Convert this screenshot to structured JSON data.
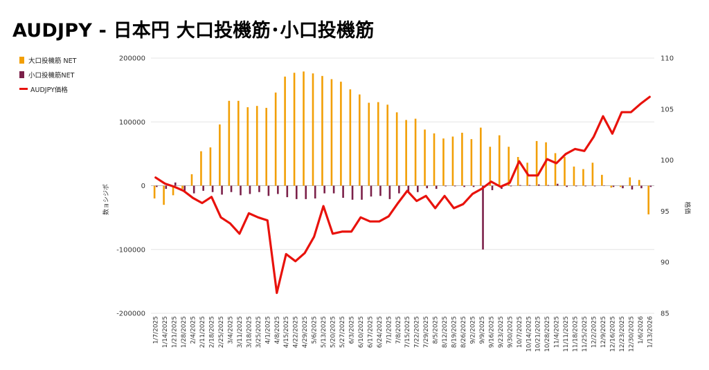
{
  "title": "AUDJPY - 日本円 大口投機筋･小口投機筋",
  "legend": [
    {
      "label": "大口投機筋 NET",
      "color": "#F29F05",
      "kind": "bar"
    },
    {
      "label": "小口投機筋NET",
      "color": "#7B2049",
      "kind": "bar"
    },
    {
      "label": "AUDJPY価格",
      "color": "#E8120C",
      "kind": "line"
    }
  ],
  "chart_data": {
    "type": "bar+line",
    "ylabel_left": "数ョシジポ",
    "ylabel_right": "格価",
    "ylim_left": [
      -200000,
      200000
    ],
    "ylim_right": [
      85,
      110
    ],
    "yticks_left": [
      "200000",
      "100000",
      "0",
      "-100000",
      "-200000"
    ],
    "yticks_right": [
      "110",
      "105",
      "100",
      "95",
      "90",
      "85"
    ],
    "categories": [
      "1/7/2025",
      "1/14/2025",
      "1/21/2025",
      "1/28/2025",
      "2/4/2025",
      "2/11/2025",
      "2/18/2025",
      "2/25/2025",
      "3/4/2025",
      "3/11/2025",
      "3/18/2025",
      "3/25/2025",
      "4/1/2025",
      "4/8/2025",
      "4/15/2025",
      "4/22/2025",
      "4/29/2025",
      "5/6/2025",
      "5/13/2025",
      "5/20/2025",
      "5/27/2025",
      "6/3/2025",
      "6/10/2025",
      "6/17/2025",
      "6/24/2025",
      "7/1/2025",
      "7/8/2025",
      "7/15/2025",
      "7/22/2025",
      "7/29/2025",
      "8/5/2025",
      "8/12/2025",
      "8/19/2025",
      "8/26/2025",
      "9/2/2025",
      "9/9/2025",
      "9/16/2025",
      "9/23/2025",
      "9/30/2025",
      "10/7/2025",
      "10/14/2025",
      "10/21/2025",
      "10/28/2025",
      "11/4/2025",
      "11/11/2025",
      "11/18/2025",
      "11/25/2025",
      "12/2/2025",
      "12/9/2025",
      "12/16/2025",
      "12/23/2025",
      "12/30/2025",
      "1/6/2026",
      "1/13/2026"
    ],
    "series": [
      {
        "name": "大口投機筋 NET",
        "type": "bar",
        "color": "#F29F05",
        "values": [
          -20000,
          -30000,
          -15000,
          -5000,
          18000,
          54000,
          60000,
          96000,
          133000,
          133000,
          123000,
          125000,
          122000,
          146000,
          171000,
          177000,
          179000,
          176000,
          172000,
          167000,
          163000,
          151000,
          143000,
          130000,
          131000,
          127000,
          115000,
          103000,
          105000,
          88000,
          82000,
          74000,
          77000,
          83000,
          73000,
          91000,
          61000,
          79000,
          61000,
          45000,
          36000,
          70000,
          68000,
          51000,
          45000,
          30000,
          26000,
          36000,
          17000,
          -3000,
          -2000,
          13000,
          9000,
          -45000
        ]
      },
      {
        "name": "小口投機筋NET",
        "type": "bar",
        "color": "#7B2049",
        "values": [
          -2000,
          -5000,
          5000,
          -8000,
          -12000,
          -8000,
          -10000,
          -14000,
          -10000,
          -15000,
          -13000,
          -10000,
          -16000,
          -13000,
          -18000,
          -21000,
          -21000,
          -20000,
          -12000,
          -12000,
          -19000,
          -22000,
          -22000,
          -17000,
          -16000,
          -21000,
          -12000,
          -9000,
          -10000,
          -4000,
          -5000,
          -1000,
          -1000,
          -2000,
          -2000,
          -100000,
          -7000,
          -5000,
          -1000,
          1000,
          1000,
          2000,
          1000,
          3000,
          -2000,
          -1000,
          -1000,
          -1000,
          0,
          -2000,
          -4000,
          -6000,
          -4000,
          -2000
        ]
      },
      {
        "name": "AUDJPY価格",
        "type": "line",
        "color": "#E8120C",
        "values": [
          98.3,
          97.7,
          97.4,
          97.0,
          96.3,
          95.8,
          96.4,
          94.4,
          93.8,
          92.8,
          94.8,
          94.4,
          94.1,
          87.0,
          90.8,
          90.1,
          90.9,
          92.5,
          95.5,
          92.8,
          93.0,
          93.0,
          94.4,
          94.0,
          94.0,
          94.5,
          95.8,
          97.0,
          96.0,
          96.5,
          95.3,
          96.5,
          95.3,
          95.7,
          96.7,
          97.2,
          97.9,
          97.4,
          97.8,
          99.9,
          98.5,
          98.5,
          100.1,
          99.7,
          100.6,
          101.1,
          100.9,
          102.3,
          104.3,
          102.6,
          104.7,
          104.7,
          105.5,
          106.2
        ]
      }
    ]
  }
}
